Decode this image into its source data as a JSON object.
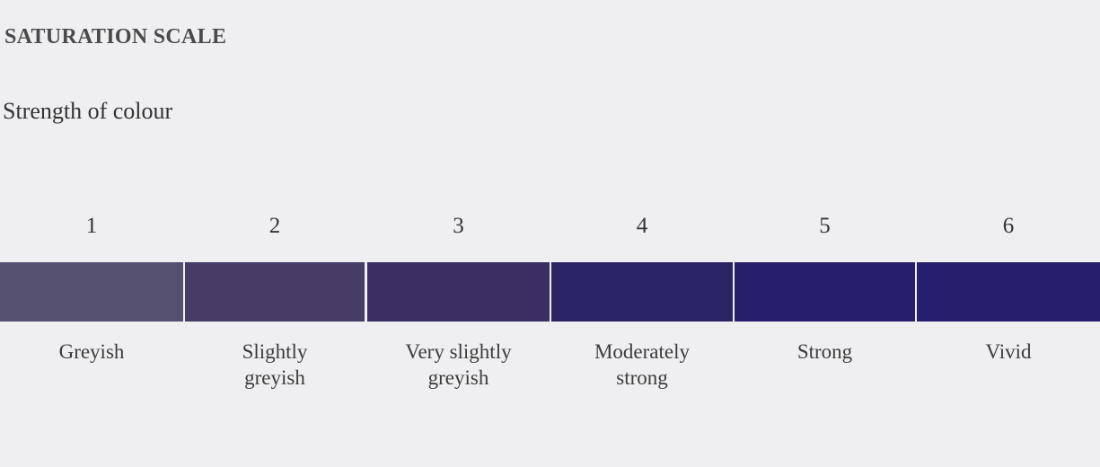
{
  "title": "SATURATION SCALE",
  "subtitle": "Strength of colour",
  "scale": [
    {
      "number": "1",
      "label": "Greyish",
      "color": "#55506f"
    },
    {
      "number": "2",
      "label": "Slightly\ngreyish",
      "color": "#463c66"
    },
    {
      "number": "3",
      "label": "Very slightly\ngreyish",
      "color": "#3b2e63"
    },
    {
      "number": "4",
      "label": "Moderately\nstrong",
      "color": "#2b2464"
    },
    {
      "number": "5",
      "label": "Strong",
      "color": "#271f6b"
    },
    {
      "number": "6",
      "label": "Vivid",
      "color": "#261f6d"
    }
  ]
}
